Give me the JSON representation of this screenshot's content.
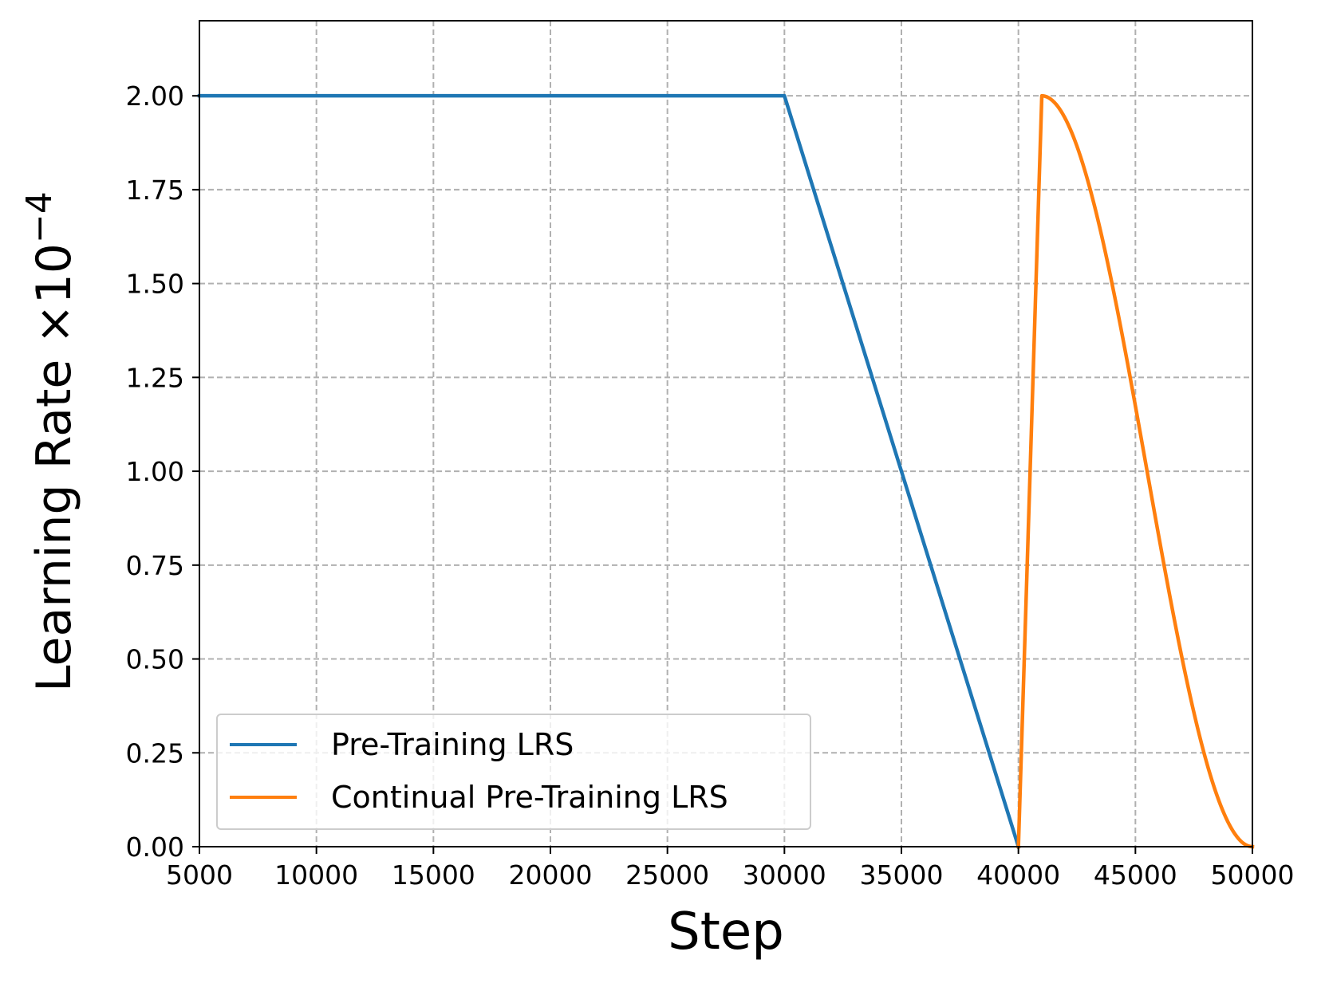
{
  "chart_data": {
    "type": "line",
    "xlabel": "Step",
    "ylabel": {
      "text": "Learning Rate ×10",
      "exponent": "−4"
    },
    "xlim": [
      5000,
      50000
    ],
    "ylim": [
      0,
      2.2
    ],
    "x_ticks": [
      5000,
      10000,
      15000,
      20000,
      25000,
      30000,
      35000,
      40000,
      45000,
      50000
    ],
    "x_tick_labels": [
      "5000",
      "10000",
      "15000",
      "20000",
      "25000",
      "30000",
      "35000",
      "40000",
      "45000",
      "50000"
    ],
    "y_ticks": [
      0,
      0.25,
      0.5,
      0.75,
      1.0,
      1.25,
      1.5,
      1.75,
      2.0
    ],
    "y_tick_labels": [
      "0.00",
      "0.25",
      "0.50",
      "0.75",
      "1.00",
      "1.25",
      "1.50",
      "1.75",
      "2.00"
    ],
    "grid": true,
    "legend_position": "bottom-left",
    "series": [
      {
        "name": "Pre-Training LRS",
        "color": "#1f77b4",
        "x": [
          5000,
          30000,
          40000
        ],
        "y": [
          2.0,
          2.0,
          0.0
        ]
      },
      {
        "name": "Continual Pre-Training LRS",
        "color": "#ff7f0e",
        "x": [
          40000,
          41000,
          42000,
          43000,
          44000,
          45000,
          46000,
          47000,
          48000,
          49000,
          50000
        ],
        "y": [
          0.0,
          2.0,
          1.94,
          1.77,
          1.51,
          1.19,
          0.84,
          0.52,
          0.25,
          0.07,
          0.0
        ]
      }
    ]
  }
}
